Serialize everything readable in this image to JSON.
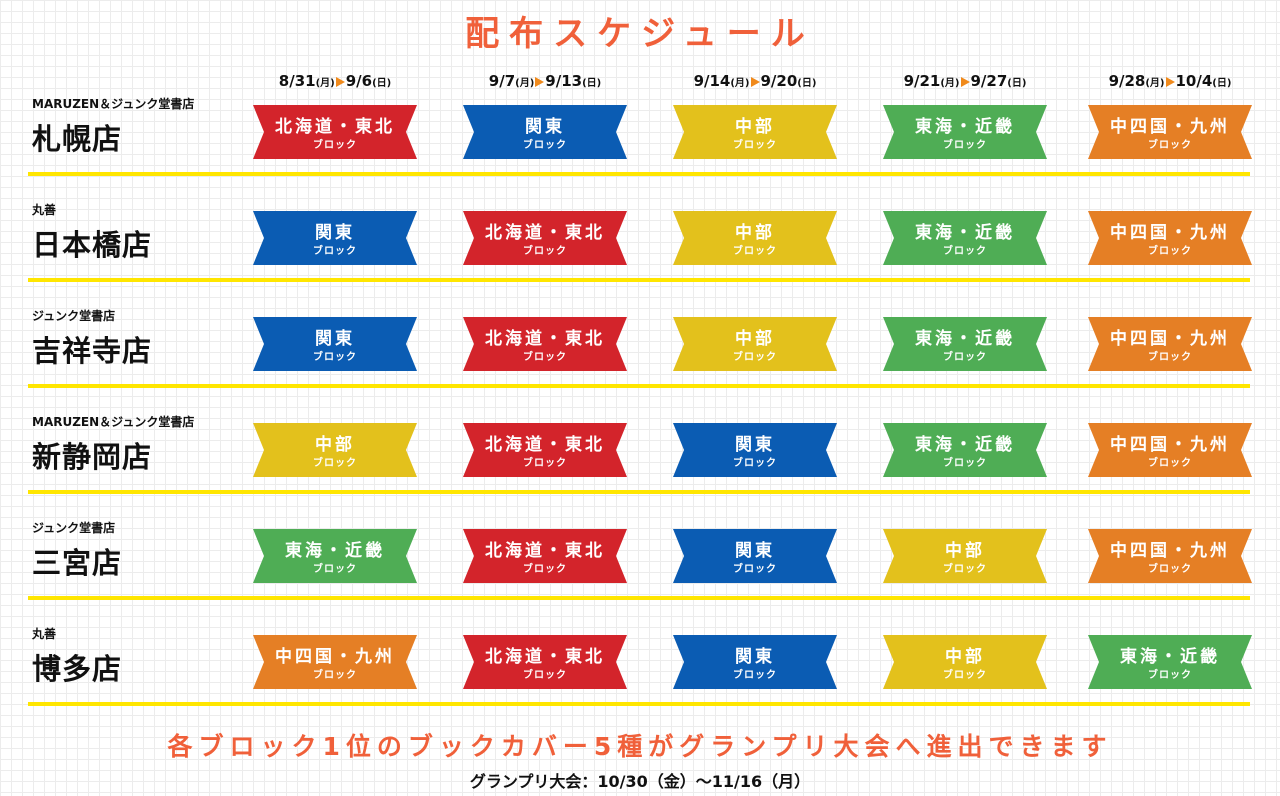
{
  "title": "配布スケジュール",
  "columns": [
    {
      "from": "8/31",
      "from_day": "(月)",
      "to": "9/6",
      "to_day": "(日)"
    },
    {
      "from": "9/7",
      "from_day": "(月)",
      "to": "9/13",
      "to_day": "(日)"
    },
    {
      "from": "9/14",
      "from_day": "(月)",
      "to": "9/20",
      "to_day": "(日)"
    },
    {
      "from": "9/21",
      "from_day": "(月)",
      "to": "9/27",
      "to_day": "(日)"
    },
    {
      "from": "9/28",
      "from_day": "(月)",
      "to": "10/4",
      "to_day": "(日)"
    }
  ],
  "block_suffix": "ブロック",
  "block_colors": {
    "北海道・東北": "#d3242b",
    "関東": "#0b5cb3",
    "中部": "#e3c11c",
    "東海・近畿": "#4fad55",
    "中四国・九州": "#e57f25"
  },
  "rows": [
    {
      "company": "MARUZEN＆ジュンク堂書店",
      "store": "札幌店",
      "cells": [
        "北海道・東北",
        "関東",
        "中部",
        "東海・近畿",
        "中四国・九州"
      ]
    },
    {
      "company": "丸善",
      "store": "日本橋店",
      "cells": [
        "関東",
        "北海道・東北",
        "中部",
        "東海・近畿",
        "中四国・九州"
      ]
    },
    {
      "company": "ジュンク堂書店",
      "store": "吉祥寺店",
      "cells": [
        "関東",
        "北海道・東北",
        "中部",
        "東海・近畿",
        "中四国・九州"
      ]
    },
    {
      "company": "MARUZEN＆ジュンク堂書店",
      "store": "新静岡店",
      "cells": [
        "中部",
        "北海道・東北",
        "関東",
        "東海・近畿",
        "中四国・九州"
      ]
    },
    {
      "company": "ジュンク堂書店",
      "store": "三宮店",
      "cells": [
        "東海・近畿",
        "北海道・東北",
        "関東",
        "中部",
        "中四国・九州"
      ]
    },
    {
      "company": "丸善",
      "store": "博多店",
      "cells": [
        "中四国・九州",
        "北海道・東北",
        "関東",
        "中部",
        "東海・近畿"
      ]
    }
  ],
  "footer": {
    "note": "各ブロック1位のブックカバー5種がグランプリ大会へ進出できます",
    "grandprix": "グランプリ大会：10/30（金）〜11/16（月）"
  }
}
